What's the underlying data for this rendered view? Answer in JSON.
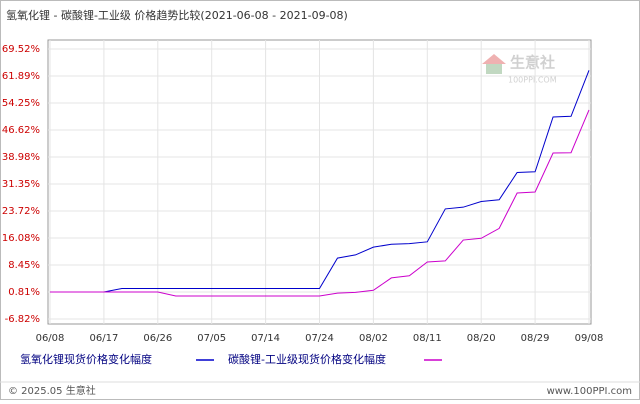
{
  "chart_data": {
    "type": "line",
    "title": "氢氧化锂 - 碳酸锂-工业级 价格趋势比较(2021-06-08 - 2021-09-08)",
    "categories": [
      "06/08",
      null,
      null,
      "06/17",
      null,
      null,
      "06/26",
      null,
      null,
      "07/05",
      null,
      null,
      "07/14",
      null,
      null,
      "07/24",
      null,
      null,
      "08/02",
      null,
      null,
      "08/11",
      null,
      null,
      "08/20",
      null,
      null,
      "08/29",
      null,
      null,
      "09/08"
    ],
    "series": [
      {
        "name": "氢氧化锂现货价格变化幅度",
        "color": "#0000cc",
        "values": [
          0.81,
          0.81,
          0.81,
          0.81,
          1.8,
          1.8,
          1.8,
          1.8,
          1.8,
          1.8,
          1.8,
          1.8,
          1.8,
          1.8,
          1.8,
          1.8,
          10.4,
          11.3,
          13.5,
          14.3,
          14.5,
          15.0,
          24.3,
          24.8,
          26.4,
          26.9,
          34.6,
          34.8,
          50.3,
          50.5,
          63.5
        ]
      },
      {
        "name": "碳酸锂-工业级现货价格变化幅度",
        "color": "#cc00cc",
        "values": [
          0.81,
          0.81,
          0.81,
          0.81,
          0.81,
          0.81,
          0.81,
          -0.3,
          -0.3,
          -0.3,
          -0.3,
          -0.3,
          -0.3,
          -0.3,
          -0.3,
          -0.3,
          0.5,
          0.7,
          1.3,
          4.8,
          5.4,
          9.3,
          9.6,
          15.5,
          16.0,
          18.8,
          28.8,
          29.1,
          40.1,
          40.2,
          52.3
        ]
      }
    ],
    "ylim": [
      -6.82,
      69.52
    ],
    "yticks": [
      {
        "value": 69.52,
        "label": "69.52%"
      },
      {
        "value": 61.89,
        "label": "61.89%"
      },
      {
        "value": 54.25,
        "label": "54.25%"
      },
      {
        "value": 46.62,
        "label": "46.62%"
      },
      {
        "value": 38.98,
        "label": "38.98%"
      },
      {
        "value": 31.35,
        "label": "31.35%"
      },
      {
        "value": 23.72,
        "label": "23.72%"
      },
      {
        "value": 16.08,
        "label": "16.08%"
      },
      {
        "value": 8.45,
        "label": "8.45%"
      },
      {
        "value": 0.81,
        "label": "0.81%"
      },
      {
        "value": -6.82,
        "label": "-6.82%"
      }
    ],
    "grid": true
  },
  "watermark": {
    "name": "生意社",
    "site": "100PPI.COM"
  },
  "footer": {
    "left": "© 2025.05 生意社",
    "right": "www.100PPI.com"
  }
}
